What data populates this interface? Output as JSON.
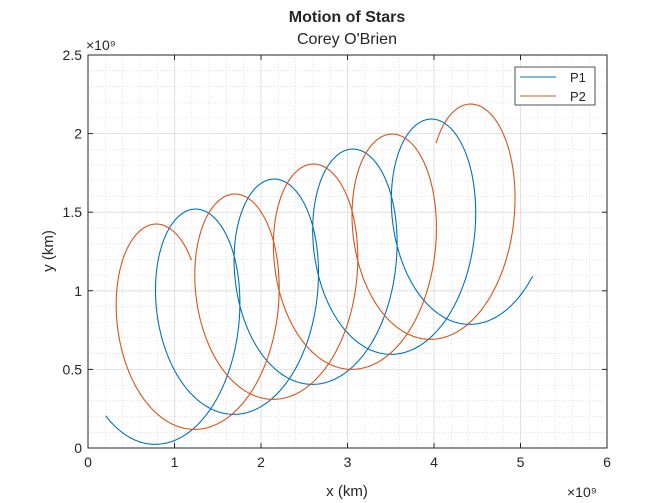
{
  "chart_data": {
    "type": "line",
    "title": "Motion of Stars",
    "subtitle": "Corey O'Brien",
    "xlabel": "x (km)",
    "ylabel": "y (km)",
    "x_exponent_label": "×10⁹",
    "y_exponent_label": "×10⁹",
    "xlim": [
      0,
      6
    ],
    "ylim": [
      0,
      2.5
    ],
    "x_scale_factor": 1000000000.0,
    "y_scale_factor": 1000000000.0,
    "xticks": [
      0,
      1,
      2,
      3,
      4,
      5,
      6
    ],
    "yticks": [
      0,
      0.5,
      1,
      1.5,
      2,
      2.5
    ],
    "xtick_labels": [
      "0",
      "1",
      "2",
      "3",
      "4",
      "5",
      "6"
    ],
    "ytick_labels": [
      "0",
      "0.5",
      "1",
      "1.5",
      "2",
      "2.5"
    ],
    "grid": true,
    "minor_grid": true,
    "legend_position": "top-right",
    "series": [
      {
        "name": "P1",
        "color": "#0072BD",
        "model": {
          "center_speed": 9e-07,
          "center_start": [
            0.7,
            0.7
          ],
          "orbit_radius": 0.7,
          "angular_speed": 4.4e-06,
          "phase_start": -2.356,
          "t_end": 6100000
        }
      },
      {
        "name": "P2",
        "color": "#D95319",
        "model": {
          "center_speed": 9e-07,
          "center_start": [
            0.7,
            0.7
          ],
          "orbit_radius": 0.7,
          "angular_speed": 4.4e-06,
          "phase_start": 0.785,
          "t_end": 6100000
        }
      }
    ]
  }
}
